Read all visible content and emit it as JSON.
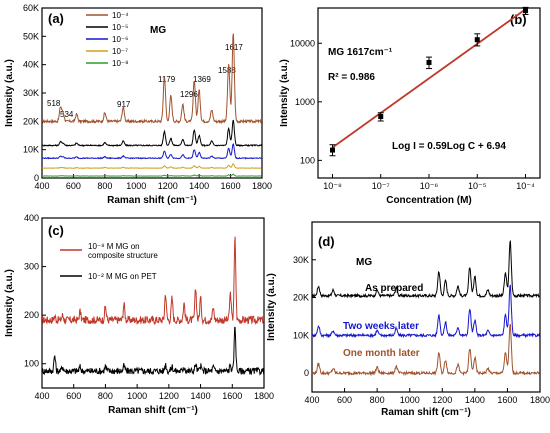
{
  "panels": [
    {
      "label": "(a)",
      "title": "MG",
      "xlabel": "Raman shift (cm⁻¹)",
      "ylabel": "Intensity (a.u.)",
      "legend": [
        "10⁻⁴",
        "10⁻⁵",
        "10⁻⁶",
        "10⁻⁷",
        "10⁻⁸"
      ],
      "peak_labels": [
        "518",
        "534",
        "917",
        "1179",
        "1296",
        "1369",
        "1588",
        "1617"
      ]
    },
    {
      "label": "(b)",
      "xlabel": "Concentration (M)",
      "ylabel": "Intensity (a.u.)",
      "annotation_title": "MG  1617cm⁻¹",
      "r2": "R² = 0.986",
      "fit_equation": "Log I = 0.59Log C + 6.94"
    },
    {
      "label": "(c)",
      "xlabel": "Raman shift (cm⁻¹)",
      "ylabel": "Intensity (a.u.)",
      "legend": [
        "10⁻⁸ M MG on composite structure",
        "10⁻² M MG on PET"
      ]
    },
    {
      "label": "(d)",
      "title": "MG",
      "xlabel": "Raman shift (cm⁻¹)",
      "ylabel": "Intensity (a.u.)",
      "curve_labels": [
        "As prepared",
        "Two weeks later",
        "One month later"
      ]
    }
  ],
  "colors": {
    "c1e4": "#a0522d",
    "c1e5": "#000000",
    "c1e6": "#1515d0",
    "c1e7": "#d4a017",
    "c1e8": "#2e9a2e",
    "fit": "#c0392b",
    "comp": "#c0392b",
    "pet": "#000000",
    "asprep": "#000000",
    "twoweeks": "#1515d0",
    "onemonth": "#a0522d"
  },
  "chart_data": [
    {
      "type": "line",
      "panel": "(a)",
      "x_range": [
        400,
        1800
      ],
      "ylim": [
        0,
        60000
      ],
      "x_ticks": [
        400,
        600,
        800,
        1000,
        1200,
        1400,
        1600,
        1800
      ],
      "y_ticks": [
        0,
        10000,
        20000,
        30000,
        40000,
        50000,
        60000
      ],
      "y_tick_labels": [
        "0",
        "10K",
        "20K",
        "30K",
        "40K",
        "50K",
        "60K"
      ],
      "peaks": [
        518,
        534,
        620,
        800,
        917,
        1179,
        1220,
        1296,
        1369,
        1400,
        1480,
        1588,
        1617
      ],
      "series": [
        {
          "name": "10⁻⁴",
          "baseline": 20000,
          "peak_heights": [
            5000,
            3000,
            2500,
            3000,
            5000,
            16000,
            9000,
            6000,
            14500,
            11000,
            4000,
            20000,
            31000
          ]
        },
        {
          "name": "10⁻⁵",
          "baseline": 11500,
          "peak_heights": [
            1200,
            800,
            800,
            1000,
            1500,
            5000,
            2500,
            2200,
            5500,
            3500,
            1500,
            6000,
            9000
          ]
        },
        {
          "name": "10⁻⁶",
          "baseline": 7000,
          "peak_heights": [
            600,
            400,
            400,
            500,
            800,
            2500,
            1400,
            1200,
            3000,
            2000,
            700,
            3500,
            5000
          ]
        },
        {
          "name": "10⁻⁷",
          "baseline": 3500,
          "peak_heights": [
            200,
            150,
            150,
            200,
            300,
            800,
            400,
            300,
            900,
            600,
            200,
            1000,
            1500
          ]
        },
        {
          "name": "10⁻⁸",
          "baseline": 700,
          "peak_heights": [
            80,
            60,
            60,
            80,
            100,
            300,
            150,
            100,
            350,
            250,
            100,
            400,
            600
          ]
        }
      ]
    },
    {
      "type": "scatter",
      "panel": "(b)",
      "x_scale": "log",
      "y_scale": "log",
      "x_range": [
        1e-08,
        0.0001
      ],
      "ylim": [
        50,
        40000
      ],
      "x_ticks": [
        1e-08,
        1e-07,
        1e-06,
        1e-05,
        0.0001
      ],
      "x_tick_labels": [
        "10⁻⁸",
        "10⁻⁷",
        "10⁻⁶",
        "10⁻⁵",
        "10⁻⁴"
      ],
      "y_ticks": [
        100,
        1000,
        10000
      ],
      "y_tick_labels": [
        "100",
        "1000",
        "10000"
      ],
      "x": [
        1e-08,
        1e-07,
        1e-06,
        1e-05,
        0.0001
      ],
      "y": [
        150,
        560,
        4700,
        11500,
        36000
      ],
      "err_low": [
        120,
        470,
        3700,
        9000,
        31000
      ],
      "err_high": [
        185,
        650,
        5800,
        14500,
        41000
      ],
      "fit": {
        "slope": 0.59,
        "intercept": 6.94
      }
    },
    {
      "type": "line",
      "panel": "(c)",
      "x_range": [
        400,
        1800
      ],
      "ylim": [
        50,
        400
      ],
      "x_ticks": [
        400,
        600,
        800,
        1000,
        1200,
        1400,
        1600,
        1800
      ],
      "y_ticks": [
        100,
        200,
        300,
        400
      ],
      "peaks": [
        480,
        530,
        640,
        800,
        917,
        1179,
        1220,
        1296,
        1369,
        1400,
        1480,
        1588,
        1617
      ],
      "series": [
        {
          "name": "10⁻⁸ M MG on composite structure",
          "baseline": 190,
          "peak_heights": [
            8,
            10,
            18,
            28,
            32,
            55,
            45,
            35,
            65,
            45,
            25,
            55,
            170
          ]
        },
        {
          "name": "10⁻² M MG on PET",
          "baseline": 85,
          "peak_heights": [
            32,
            10,
            8,
            10,
            10,
            14,
            10,
            10,
            14,
            10,
            8,
            12,
            95
          ]
        }
      ]
    },
    {
      "type": "line",
      "panel": "(d)",
      "x_range": [
        400,
        1800
      ],
      "ylim": [
        -5000,
        40000
      ],
      "x_ticks": [
        400,
        600,
        800,
        1000,
        1200,
        1400,
        1600,
        1800
      ],
      "y_ticks": [
        0,
        10000,
        20000,
        30000
      ],
      "y_tick_labels": [
        "0",
        "10K",
        "20K",
        "30K"
      ],
      "peaks": [
        440,
        530,
        800,
        917,
        1179,
        1220,
        1296,
        1369,
        1400,
        1480,
        1588,
        1617
      ],
      "series": [
        {
          "name": "As prepared",
          "baseline": 20500,
          "peak_heights": [
            2500,
            1500,
            1500,
            2000,
            6500,
            4000,
            2500,
            7500,
            5000,
            1500,
            6000,
            14500
          ]
        },
        {
          "name": "Two weeks later",
          "baseline": 10000,
          "peak_heights": [
            2500,
            1200,
            1300,
            1800,
            5500,
            3500,
            2200,
            7000,
            4000,
            1200,
            5500,
            13500
          ]
        },
        {
          "name": "One month later",
          "baseline": 0,
          "peak_heights": [
            2500,
            1200,
            1500,
            1800,
            5500,
            3500,
            2200,
            6500,
            4000,
            1200,
            5500,
            13000
          ]
        }
      ]
    }
  ]
}
